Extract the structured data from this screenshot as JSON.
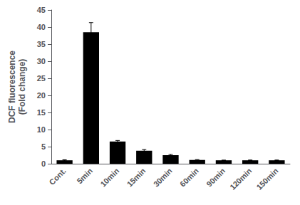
{
  "chart_data": {
    "type": "bar",
    "categories": [
      "Cont.",
      "5min",
      "10min",
      "15min",
      "30min",
      "60min",
      "90min",
      "120min",
      "150min"
    ],
    "values": [
      1.0,
      38.5,
      6.5,
      3.8,
      2.5,
      1.1,
      1.0,
      1.0,
      1.0
    ],
    "errors": [
      0.15,
      2.8,
      0.3,
      0.35,
      0.2,
      0.1,
      0.05,
      0.08,
      0.08
    ],
    "color": "#000000",
    "ylabel": "DCF fluorescence\n(Fold change)",
    "ylim": [
      0,
      45
    ],
    "yticks": [
      0,
      5,
      10,
      15,
      20,
      25,
      30,
      35,
      40,
      45
    ],
    "grid": false
  }
}
